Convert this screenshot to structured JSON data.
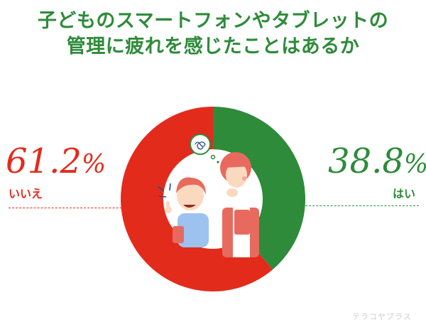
{
  "title_line1": "子どものスマートフォンやタブレットの",
  "title_line2": "管理に疲れを感じたことはあるか",
  "watermark": "テラコヤプラス",
  "colors": {
    "yes": "#2e8b3a",
    "no": "#e32b1c",
    "title": "#2e8b3a"
  },
  "chart_data": {
    "type": "pie",
    "title": "子どものスマートフォンやタブレットの管理に疲れを感じたことはあるか",
    "slices": [
      {
        "label": "はい",
        "value": 38.8,
        "value_label": "38.8",
        "unit": "%",
        "color": "#2e8b3a"
      },
      {
        "label": "いいえ",
        "value": 61.2,
        "value_label": "61.2",
        "unit": "%",
        "color": "#e32b1c"
      }
    ]
  }
}
